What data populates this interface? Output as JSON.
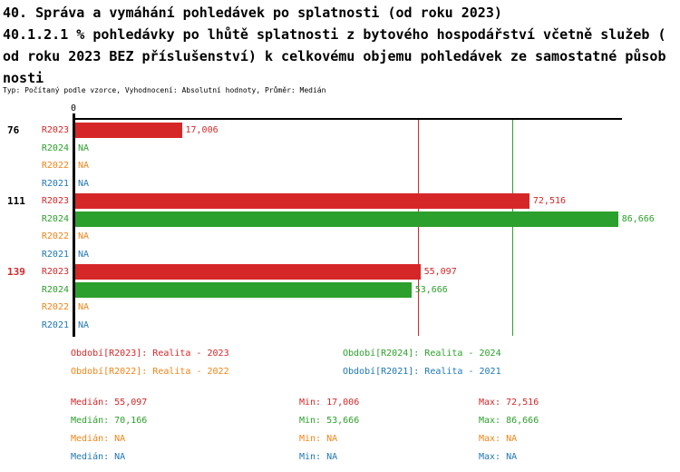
{
  "title": {
    "lines": [
      "40. Správa a vymáhání pohledávek po splatnosti (od roku 2023)",
      "40.1.2.1 % pohledávky po lhůtě splatnosti z bytového hospodářství včetně služeb (",
      "od roku 2023 BEZ příslušenství) k celkovému objemu pohledávek ze samostatné působ",
      "nosti"
    ],
    "subtitle": "Typ: Počítaný podle vzorce, Vyhodnocení: Absolutní hodnoty, Průměr: Medián"
  },
  "colors": {
    "red": "#d62728",
    "green": "#2ca02c",
    "orange": "#f28418",
    "blue": "#1f77b4",
    "black": "#000000",
    "background": "#ffffff"
  },
  "chart_data": {
    "type": "bar",
    "orientation": "horizontal",
    "title": "40. Správa a vymáhání pohledávek po splatnosti (od roku 2023) — 40.1.2.1 % pohledávky po lhůtě splatnosti z bytového hospodářství včetně služeb (od roku 2023 BEZ příslušenství) k celkovému objemu pohledávek ze samostatné působnosti",
    "xlabel": "",
    "ylabel": "",
    "grid": false,
    "axis": {
      "min": 0,
      "max": 87580,
      "tick_labels": [
        "0"
      ]
    },
    "series": [
      {
        "name": "R2023",
        "color_key": "red"
      },
      {
        "name": "R2024",
        "color_key": "green"
      },
      {
        "name": "R2022",
        "color_key": "orange"
      },
      {
        "name": "R2021",
        "color_key": "blue"
      }
    ],
    "groups": [
      {
        "label": "76",
        "label_color_key": "black",
        "values": [
          17006,
          null,
          null,
          null
        ],
        "value_labels": [
          "17,006",
          "NA",
          "NA",
          "NA"
        ]
      },
      {
        "label": "111",
        "label_color_key": "black",
        "values": [
          72516,
          86666,
          null,
          null
        ],
        "value_labels": [
          "72,516",
          "86,666",
          "NA",
          "NA"
        ]
      },
      {
        "label": "139",
        "label_color_key": "red",
        "values": [
          55097,
          53666,
          null,
          null
        ],
        "value_labels": [
          "55,097",
          "53,666",
          "NA",
          "NA"
        ]
      }
    ],
    "reference_lines": [
      {
        "value": 55097,
        "color_key": "red",
        "meaning": "median-R2023"
      },
      {
        "value": 70166,
        "color_key": "green",
        "meaning": "median-R2024"
      }
    ],
    "summary": {
      "R2023": {
        "median": 55097,
        "min": 17006,
        "max": 72516
      },
      "R2024": {
        "median": 70166,
        "min": 53666,
        "max": 86666
      },
      "R2022": {
        "median": null,
        "min": null,
        "max": null
      },
      "R2021": {
        "median": null,
        "min": null,
        "max": null
      }
    }
  },
  "legend": {
    "items": [
      {
        "label": "Období[R2023]: Realita - 2023",
        "color_key": "red",
        "row": 0,
        "col": 0
      },
      {
        "label": "Období[R2024]: Realita - 2024",
        "color_key": "green",
        "row": 0,
        "col": 1
      },
      {
        "label": "Období[R2022]: Realita - 2022",
        "color_key": "orange",
        "row": 1,
        "col": 0
      },
      {
        "label": "Období[R2021]: Realita - 2021",
        "color_key": "blue",
        "row": 1,
        "col": 1
      }
    ]
  },
  "stats": {
    "rows": [
      {
        "color_key": "red",
        "cells": [
          "Medián: 55,097",
          "Min: 17,006",
          "Max: 72,516"
        ]
      },
      {
        "color_key": "green",
        "cells": [
          "Medián: 70,166",
          "Min: 53,666",
          "Max: 86,666"
        ]
      },
      {
        "color_key": "orange",
        "cells": [
          "Medián: NA",
          "Min: NA",
          "Max: NA"
        ]
      },
      {
        "color_key": "blue",
        "cells": [
          "Medián: NA",
          "Min: NA",
          "Max: NA"
        ]
      }
    ]
  }
}
